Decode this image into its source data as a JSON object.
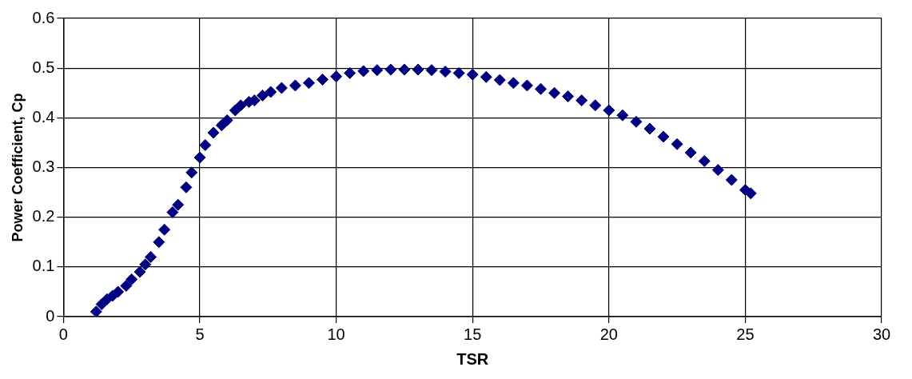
{
  "chart_data": {
    "type": "scatter",
    "xlabel": "TSR",
    "ylabel": "Power Coefficient, Cp",
    "marker": "diamond",
    "grid": true,
    "legend": false,
    "xlim": [
      0,
      30
    ],
    "xticks": [
      0,
      5,
      10,
      15,
      20,
      25,
      30
    ],
    "ylim": [
      0,
      0.6
    ],
    "yticks": [
      0,
      0.1,
      0.2,
      0.3,
      0.4,
      0.5,
      0.6
    ],
    "series": [
      {
        "color": "#000080",
        "x": [
          1.2,
          1.4,
          1.6,
          1.8,
          2,
          2.3,
          2.5,
          2.8,
          3,
          3.2,
          3.5,
          3.7,
          4,
          4.2,
          4.5,
          4.7,
          5,
          5.2,
          5.5,
          5.8,
          6,
          6.3,
          6.5,
          6.8,
          7,
          7.3,
          7.6,
          8,
          8.5,
          9,
          9.5,
          10,
          10.5,
          11,
          11.5,
          12,
          12.5,
          13,
          13.5,
          14,
          14.5,
          15,
          15.5,
          16,
          16.5,
          17,
          17.5,
          18,
          18.5,
          19,
          19.5,
          20,
          20.5,
          21,
          21.5,
          22,
          22.5,
          23,
          23.5,
          24,
          24.5,
          25,
          25.2
        ],
        "values": [
          0.01,
          0.025,
          0.035,
          0.042,
          0.05,
          0.062,
          0.075,
          0.09,
          0.105,
          0.12,
          0.15,
          0.175,
          0.21,
          0.225,
          0.26,
          0.29,
          0.32,
          0.345,
          0.37,
          0.385,
          0.395,
          0.415,
          0.425,
          0.432,
          0.435,
          0.445,
          0.452,
          0.46,
          0.465,
          0.47,
          0.477,
          0.483,
          0.49,
          0.494,
          0.496,
          0.497,
          0.497,
          0.497,
          0.496,
          0.493,
          0.49,
          0.487,
          0.482,
          0.476,
          0.47,
          0.465,
          0.458,
          0.45,
          0.443,
          0.435,
          0.425,
          0.415,
          0.405,
          0.392,
          0.378,
          0.362,
          0.347,
          0.33,
          0.313,
          0.295,
          0.275,
          0.255,
          0.248
        ]
      }
    ]
  }
}
